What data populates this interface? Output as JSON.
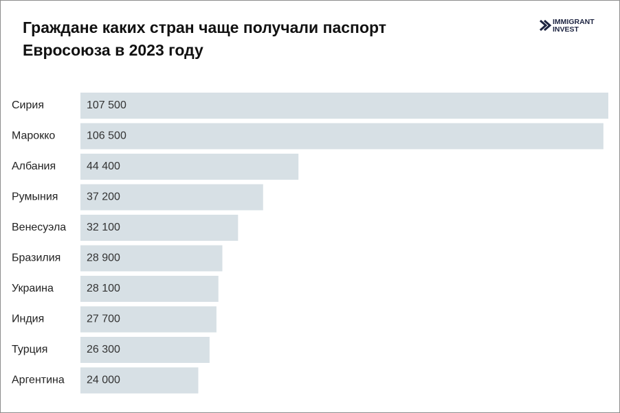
{
  "chart_data": {
    "type": "bar",
    "orientation": "horizontal",
    "title": [
      "Граждане каких стран чаще получали паспорт",
      "Евросоюза в 2023 году"
    ],
    "categories": [
      "Сирия",
      "Марокко",
      "Албания",
      "Румыния",
      "Венесуэла",
      "Бразилия",
      "Украина",
      "Индия",
      "Турция",
      "Аргентина"
    ],
    "values": [
      107500,
      106500,
      44400,
      37200,
      32100,
      28900,
      28100,
      27700,
      26300,
      24000
    ],
    "value_labels": [
      "107 500",
      "106 500",
      "44 400",
      "37 200",
      "32 100",
      "28 900",
      "28 100",
      "27 700",
      "26 300",
      "24 000"
    ],
    "color": "#d7e0e5"
  },
  "logo": [
    "IMMIGRANT",
    "INVEST"
  ]
}
